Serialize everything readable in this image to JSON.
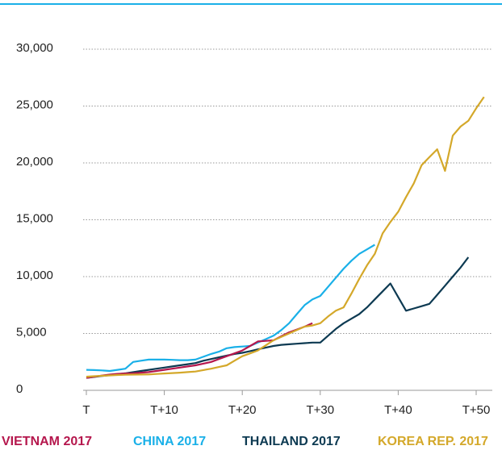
{
  "chart_data": {
    "type": "line",
    "x": [
      0,
      1,
      2,
      3,
      4,
      5,
      6,
      7,
      8,
      9,
      10,
      11,
      12,
      13,
      14,
      15,
      16,
      17,
      18,
      19,
      20,
      21,
      22,
      23,
      24,
      25,
      26,
      27,
      28,
      29,
      30,
      31,
      32,
      33,
      34,
      35,
      36,
      37,
      38,
      39,
      40,
      41,
      42,
      43,
      44,
      45,
      46,
      47,
      48,
      49,
      50,
      51
    ],
    "series": [
      {
        "name": "VIETNAM 2017",
        "color": "#b5174d",
        "values": [
          1100,
          1200,
          1300,
          1380,
          1450,
          1480,
          1500,
          1550,
          1600,
          1700,
          1800,
          1900,
          2000,
          2100,
          2200,
          2350,
          2500,
          2750,
          3000,
          3250,
          3500,
          3900,
          4300,
          4350,
          4400,
          4750,
          5100,
          5350,
          5600,
          5900,
          null,
          null,
          null,
          null,
          null,
          null,
          null,
          null,
          null,
          null,
          null,
          null,
          null,
          null,
          null,
          null,
          null,
          null,
          null,
          null,
          null,
          null
        ]
      },
      {
        "name": "CHINA 2017",
        "color": "#1ab0e8",
        "values": [
          1800,
          1780,
          1750,
          1700,
          1800,
          1900,
          2500,
          2600,
          2700,
          2700,
          2700,
          2680,
          2650,
          2650,
          2700,
          2950,
          3200,
          3400,
          3700,
          3800,
          3850,
          3900,
          4200,
          4500,
          4800,
          5300,
          5900,
          6700,
          7500,
          8000,
          8300,
          9100,
          9900,
          10700,
          11400,
          12000,
          12400,
          12800,
          null,
          null,
          null,
          null,
          null,
          null,
          null,
          null,
          null,
          null,
          null,
          null,
          null,
          null
        ]
      },
      {
        "name": "THAILAND 2017",
        "color": "#0d3a52",
        "values": [
          1100,
          1180,
          1260,
          1340,
          1420,
          1500,
          1600,
          1700,
          1800,
          1900,
          2000,
          2100,
          2200,
          2300,
          2400,
          2600,
          2750,
          2900,
          3050,
          3200,
          3300,
          3450,
          3600,
          3750,
          3900,
          4000,
          4050,
          4100,
          4150,
          4200,
          4200,
          4800,
          5400,
          5900,
          6300,
          6700,
          7300,
          8000,
          8700,
          9400,
          8200,
          7000,
          7200,
          7400,
          7600,
          8400,
          9200,
          10000,
          10800,
          11700,
          null,
          null
        ]
      },
      {
        "name": "KOREA REP. 2017",
        "color": "#d4a82a",
        "values": [
          1200,
          1240,
          1280,
          1310,
          1350,
          1370,
          1380,
          1390,
          1400,
          1440,
          1480,
          1520,
          1550,
          1600,
          1650,
          1780,
          1900,
          2050,
          2200,
          2600,
          3000,
          3250,
          3500,
          3950,
          4400,
          4700,
          5000,
          5300,
          5600,
          5700,
          5900,
          6500,
          7000,
          7300,
          8500,
          9800,
          11000,
          12000,
          13800,
          14800,
          15700,
          17000,
          18200,
          19800,
          20500,
          21200,
          19300,
          22400,
          23200,
          23700,
          24800,
          25800
        ]
      }
    ],
    "xlim": [
      0,
      52
    ],
    "xticks": [
      {
        "value": 0,
        "label": "T"
      },
      {
        "value": 10,
        "label": "T+10"
      },
      {
        "value": 20,
        "label": "T+20"
      },
      {
        "value": 30,
        "label": "T+30"
      },
      {
        "value": 40,
        "label": "T+40"
      },
      {
        "value": 50,
        "label": "T+50"
      }
    ],
    "ylim": [
      0,
      30000
    ],
    "yticks": [
      0,
      {
        "value": 5000,
        "label": "5,000"
      },
      {
        "value": 10000,
        "label": "10,000"
      },
      {
        "value": 15000,
        "label": "15,000"
      },
      {
        "value": 20000,
        "label": "20,000"
      },
      {
        "value": 25000,
        "label": "25,000"
      },
      {
        "value": 30000,
        "label": "30,000"
      }
    ],
    "grid": true
  }
}
